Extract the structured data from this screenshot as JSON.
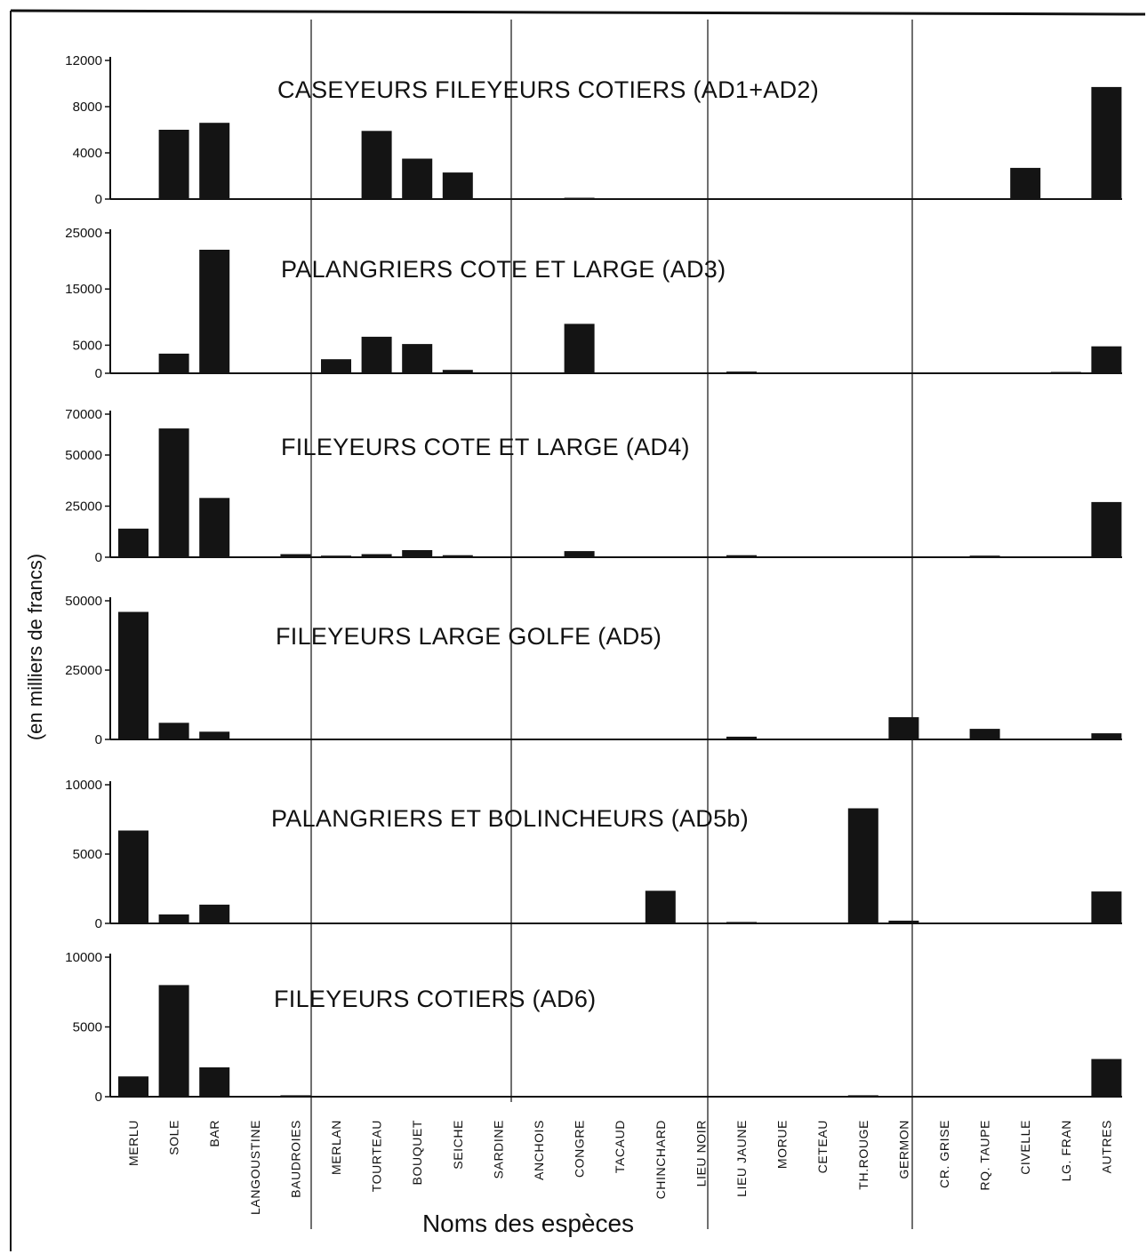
{
  "figure": {
    "xlabel": "Noms des espèces",
    "ylabel": "(en milliers de francs)"
  },
  "chart_data": {
    "type": "bar",
    "xlabel": "Noms des espèces",
    "ylabel": "(en milliers de francs)",
    "categories": [
      "MERLU",
      "SOLE",
      "BAR",
      "LANGOUSTINE",
      "BAUDROIES",
      "MERLAN",
      "TOURTEAU",
      "BOUQUET",
      "SEICHE",
      "SARDINE",
      "ANCHOIS",
      "CONGRE",
      "TACAUD",
      "CHINCHARD",
      "LIEU NOIR",
      "LIEU JAUNE",
      "MORUE",
      "CETEAU",
      "TH.ROUGE",
      "GERMON",
      "CR. GRISE",
      "RQ. TAUPE",
      "CIVELLE",
      "LG. FRAN",
      "AUTRES"
    ],
    "panels": [
      {
        "title": "CASEYEURS FILEYEURS COTIERS (AD1+AD2)",
        "ylim": [
          0,
          12000
        ],
        "yticks": [
          0,
          4000,
          8000,
          12000
        ],
        "values": [
          0,
          6000,
          6600,
          0,
          0,
          0,
          5900,
          3500,
          2300,
          0,
          0,
          100,
          0,
          0,
          0,
          0,
          0,
          0,
          0,
          0,
          0,
          0,
          2700,
          0,
          9700
        ]
      },
      {
        "title": "PALANGRIERS COTE ET LARGE (AD3)",
        "ylim": [
          0,
          25000
        ],
        "yticks": [
          0,
          5000,
          15000,
          25000
        ],
        "values": [
          0,
          3500,
          22000,
          0,
          0,
          2500,
          6500,
          5200,
          600,
          0,
          0,
          8800,
          0,
          0,
          0,
          300,
          0,
          0,
          0,
          0,
          0,
          0,
          0,
          200,
          4800
        ]
      },
      {
        "title": "FILEYEURS COTE ET LARGE (AD4)",
        "ylim": [
          0,
          70000
        ],
        "yticks": [
          0,
          25000,
          50000,
          70000
        ],
        "values": [
          14000,
          63000,
          29000,
          0,
          1500,
          800,
          1500,
          3500,
          1000,
          0,
          0,
          3000,
          0,
          0,
          0,
          1000,
          0,
          0,
          0,
          0,
          0,
          800,
          0,
          0,
          27000
        ]
      },
      {
        "title": "FILEYEURS LARGE GOLFE (AD5)",
        "ylim": [
          0,
          50000
        ],
        "yticks": [
          0,
          25000,
          50000
        ],
        "values": [
          46000,
          6000,
          2800,
          0,
          0,
          0,
          0,
          0,
          0,
          0,
          0,
          0,
          0,
          0,
          0,
          1000,
          0,
          0,
          0,
          8000,
          0,
          3800,
          0,
          0,
          2200
        ]
      },
      {
        "title": "PALANGRIERS ET BOLINCHEURS (AD5b)",
        "ylim": [
          0,
          10000
        ],
        "yticks": [
          0,
          5000,
          10000
        ],
        "values": [
          6700,
          650,
          1350,
          0,
          0,
          0,
          0,
          0,
          0,
          0,
          0,
          0,
          0,
          2350,
          0,
          100,
          0,
          0,
          8300,
          200,
          0,
          0,
          0,
          0,
          2300
        ]
      },
      {
        "title": "FILEYEURS COTIERS (AD6)",
        "ylim": [
          0,
          10000
        ],
        "yticks": [
          0,
          5000,
          10000
        ],
        "values": [
          1450,
          8000,
          2100,
          0,
          100,
          0,
          0,
          0,
          0,
          0,
          0,
          0,
          0,
          0,
          0,
          0,
          0,
          0,
          100,
          0,
          0,
          0,
          0,
          0,
          2700
        ]
      }
    ],
    "grid": false,
    "legend": "none"
  },
  "colors": {
    "bar": "#141414",
    "axis": "#111111",
    "divider": "#222222",
    "background": "#ffffff"
  }
}
